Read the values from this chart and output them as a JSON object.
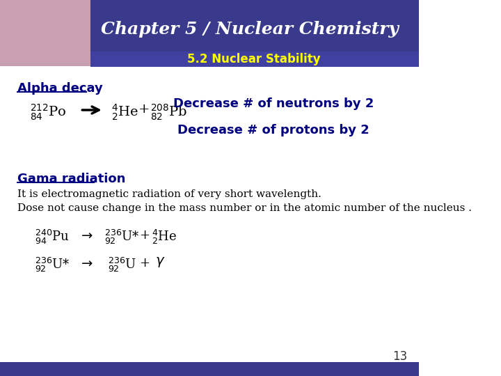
{
  "title": "Chapter 5 / Nuclear Chemistry",
  "subtitle": "5.2 Nuclear Stability",
  "header_bg": "#3a3a8c",
  "subtitle_color": "#ffff00",
  "title_color": "#ffffff",
  "slide_bg": "#ffffff",
  "alpha_decay_label": "Alpha decay",
  "decrease_neutrons": "Decrease # of neutrons by 2",
  "decrease_protons": "Decrease # of protons by 2",
  "gama_label": "Gama radiation",
  "gama_text1": "It is electromagnetic radiation of very short wavelength.",
  "gama_text2": "Dose not cause change in the mass number or in the atomic number of the nucleus .",
  "page_number": "13",
  "label_color": "#000080",
  "body_text_color": "#000000"
}
